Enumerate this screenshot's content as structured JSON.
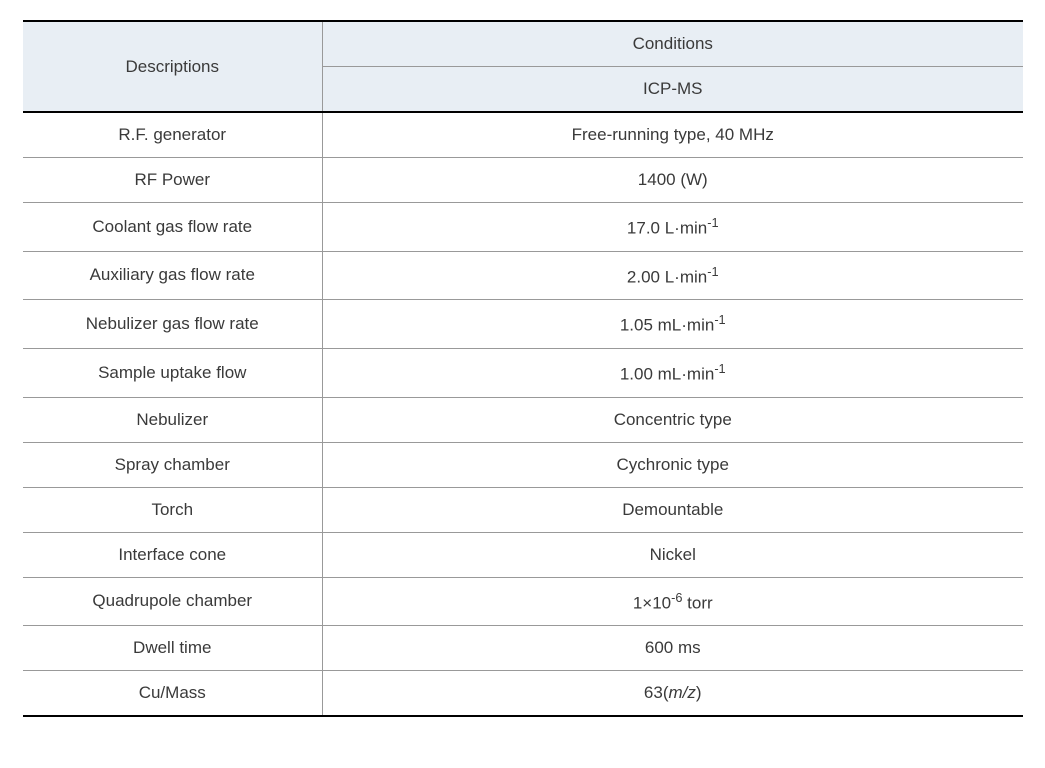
{
  "table": {
    "type": "table",
    "styling": {
      "header_background_color": "#e8eef4",
      "background_color": "#ffffff",
      "border_color": "#999999",
      "border_top_bottom_color": "#000000",
      "border_top_bottom_width": 2,
      "text_color": "#3a3a3a",
      "font_size": 17,
      "cell_padding": 12,
      "descriptions_column_width_pct": 30,
      "conditions_column_width_pct": 70
    },
    "headers": {
      "descriptions": "Descriptions",
      "conditions": "Conditions",
      "icpms": "ICP-MS"
    },
    "rows": [
      {
        "description": "R.F. generator",
        "value": "Free-running type, 40 MHz"
      },
      {
        "description": "RF Power",
        "value": "1400 (W)"
      },
      {
        "description": "Coolant gas flow rate",
        "value": "17.0 L·min",
        "superscript": "-1"
      },
      {
        "description": "Auxiliary gas flow rate",
        "value": "2.00 L·min",
        "superscript": "-1"
      },
      {
        "description": "Nebulizer gas flow rate",
        "value": "1.05 mL·min",
        "superscript": "-1"
      },
      {
        "description": "Sample uptake flow",
        "value": "1.00 mL·min",
        "superscript": "-1"
      },
      {
        "description": "Nebulizer",
        "value": "Concentric type"
      },
      {
        "description": "Spray chamber",
        "value": "Cychronic type"
      },
      {
        "description": "Torch",
        "value": "Demountable"
      },
      {
        "description": "Interface cone",
        "value": "Nickel"
      },
      {
        "description": "Quadrupole chamber",
        "value_prefix": "1×10",
        "superscript": "-6",
        "value_suffix": " torr"
      },
      {
        "description": "Dwell time",
        "value": "600 ms"
      },
      {
        "description": "Cu/Mass",
        "value_prefix": "63(",
        "italic": "m/z",
        "value_suffix": ")"
      }
    ]
  }
}
